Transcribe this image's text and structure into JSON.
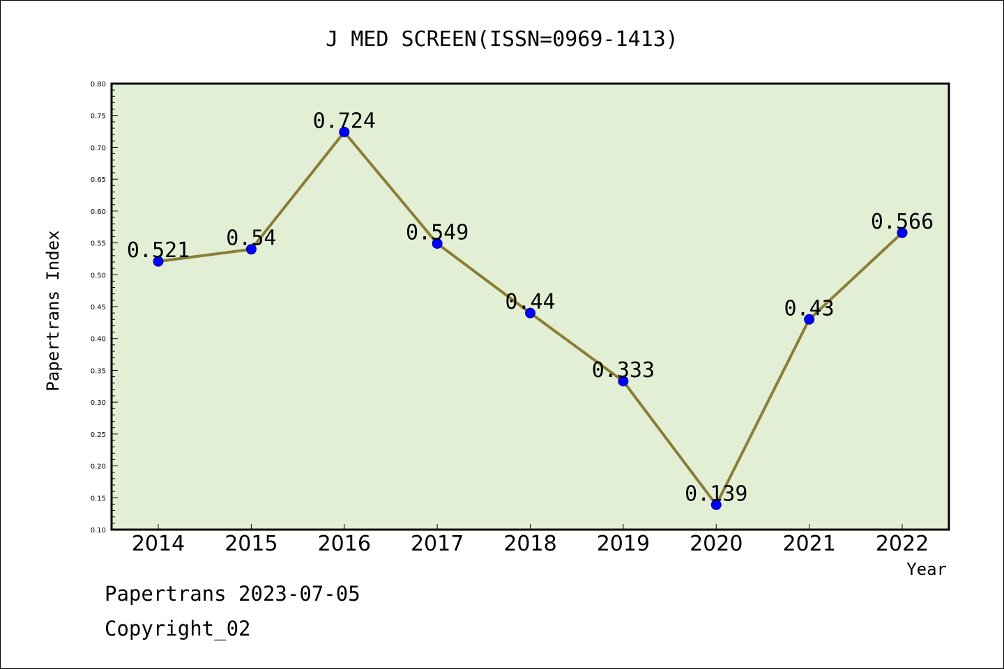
{
  "colors": {
    "plot_background": "#e2efd5",
    "line": "#8b7d37",
    "marker": "#0000ff",
    "marker_edge": "#00008b"
  },
  "footer": {
    "line1": "Papertrans 2023-07-05",
    "line2": "Copyright_02"
  },
  "chart_data": {
    "type": "line",
    "title": "J MED SCREEN(ISSN=0969-1413)",
    "xlabel": "Year",
    "ylabel": "Papertrans Index",
    "categories": [
      "2014",
      "2015",
      "2016",
      "2017",
      "2018",
      "2019",
      "2020",
      "2021",
      "2022"
    ],
    "series": [
      {
        "values": [
          0.521,
          0.54,
          0.724,
          0.549,
          0.44,
          0.333,
          0.139,
          0.43,
          0.566
        ],
        "labels": [
          "0.521",
          "0.54",
          "0.724",
          "0.549",
          "0.44",
          "0.333",
          "0.139",
          "0.43",
          "0.566"
        ]
      }
    ],
    "ylim": [
      0.1,
      0.8
    ],
    "yticks": [
      "0.10",
      "0.15",
      "0.20",
      "0.25",
      "0.30",
      "0.35",
      "0.40",
      "0.45",
      "0.50",
      "0.55",
      "0.60",
      "0.65",
      "0.70",
      "0.75",
      "0.80"
    ],
    "grid": false,
    "legend": "none"
  }
}
